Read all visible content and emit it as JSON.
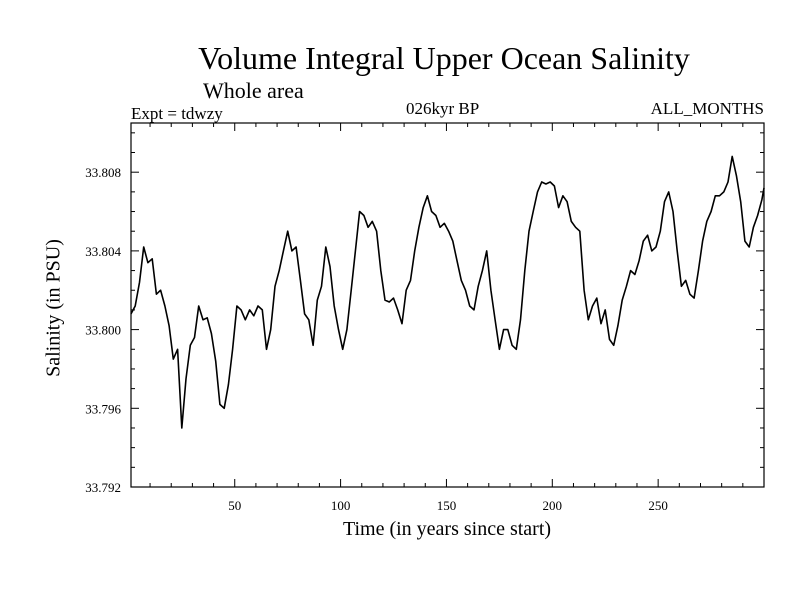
{
  "chart_data": {
    "type": "line",
    "title": "Volume Integral Upper Ocean Salinity",
    "subtitle": "Whole area",
    "experiment": "Expt = tdwzy",
    "period": "026kyr BP",
    "months": "ALL_MONTHS",
    "xlabel": "Time (in years since start)",
    "ylabel": "Salinity (in PSU)",
    "xlim": [
      1,
      300
    ],
    "ylim": [
      33.792,
      33.8105
    ],
    "x_ticks": [
      50,
      100,
      150,
      200,
      250
    ],
    "x_tick_labels": [
      "50",
      "100",
      "150",
      "200",
      "250"
    ],
    "y_ticks": [
      33.792,
      33.796,
      33.8,
      33.804,
      33.808
    ],
    "y_tick_labels": [
      "33.792",
      "33.796",
      "33.800",
      "33.804",
      "33.808"
    ],
    "grid": false,
    "series": [
      {
        "color": "#000000",
        "x": [
          1,
          3,
          5,
          7,
          9,
          11,
          13,
          15,
          17,
          19,
          21,
          23,
          25,
          27,
          29,
          31,
          33,
          35,
          37,
          39,
          41,
          43,
          45,
          47,
          49,
          51,
          53,
          55,
          57,
          59,
          61,
          63,
          65,
          67,
          69,
          71,
          73,
          75,
          77,
          79,
          81,
          83,
          85,
          87,
          89,
          91,
          93,
          95,
          97,
          99,
          101,
          103,
          105,
          107,
          109,
          111,
          113,
          115,
          117,
          119,
          121,
          123,
          125,
          127,
          129,
          131,
          133,
          135,
          137,
          139,
          141,
          143,
          145,
          147,
          149,
          151,
          153,
          155,
          157,
          159,
          161,
          163,
          165,
          167,
          169,
          171,
          173,
          175,
          177,
          179,
          181,
          183,
          185,
          187,
          189,
          191,
          193,
          195,
          197,
          199,
          201,
          203,
          205,
          207,
          209,
          211,
          213,
          215,
          217,
          219,
          221,
          223,
          225,
          227,
          229,
          231,
          233,
          235,
          237,
          239,
          241,
          243,
          245,
          247,
          249,
          251,
          253,
          255,
          257,
          259,
          261,
          263,
          265,
          267,
          269,
          271,
          273,
          275,
          277,
          279,
          281,
          283,
          285,
          287,
          289,
          291,
          293,
          295,
          297,
          299,
          300
        ],
        "values": [
          33.8008,
          33.8012,
          33.8024,
          33.8042,
          33.8034,
          33.8036,
          33.8018,
          33.802,
          33.8012,
          33.8002,
          33.7985,
          33.799,
          33.795,
          33.7975,
          33.7992,
          33.7996,
          33.8012,
          33.8005,
          33.8006,
          33.7998,
          33.7984,
          33.7962,
          33.796,
          33.7972,
          33.799,
          33.8012,
          33.801,
          33.8005,
          33.801,
          33.8007,
          33.8012,
          33.801,
          33.799,
          33.8,
          33.8022,
          33.803,
          33.804,
          33.805,
          33.804,
          33.8042,
          33.8025,
          33.8008,
          33.8005,
          33.7992,
          33.8015,
          33.8022,
          33.8042,
          33.8032,
          33.8012,
          33.8,
          33.799,
          33.8,
          33.802,
          33.804,
          33.806,
          33.8058,
          33.8052,
          33.8055,
          33.805,
          33.803,
          33.8015,
          33.8014,
          33.8016,
          33.801,
          33.8003,
          33.802,
          33.8025,
          33.804,
          33.8052,
          33.8062,
          33.8068,
          33.806,
          33.8058,
          33.8052,
          33.8054,
          33.805,
          33.8045,
          33.8035,
          33.8025,
          33.802,
          33.8012,
          33.801,
          33.8022,
          33.803,
          33.804,
          33.802,
          33.8005,
          33.799,
          33.8,
          33.8,
          33.7992,
          33.799,
          33.8005,
          33.803,
          33.805,
          33.806,
          33.807,
          33.8075,
          33.8074,
          33.8075,
          33.8073,
          33.8062,
          33.8068,
          33.8065,
          33.8055,
          33.8052,
          33.805,
          33.802,
          33.8005,
          33.8012,
          33.8016,
          33.8003,
          33.801,
          33.7995,
          33.7992,
          33.8002,
          33.8015,
          33.8022,
          33.803,
          33.8028,
          33.8035,
          33.8045,
          33.8048,
          33.804,
          33.8042,
          33.805,
          33.8065,
          33.807,
          33.806,
          33.804,
          33.8022,
          33.8025,
          33.8018,
          33.8016,
          33.803,
          33.8045,
          33.8055,
          33.806,
          33.8068,
          33.8068,
          33.807,
          33.8075,
          33.8088,
          33.8078,
          33.8065,
          33.8045,
          33.8042,
          33.8052,
          33.8058,
          33.8066,
          33.8072
        ]
      }
    ]
  }
}
